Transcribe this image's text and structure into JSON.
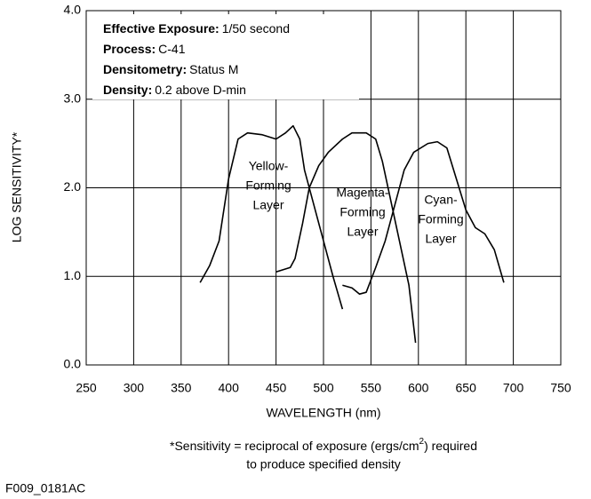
{
  "chart_data": {
    "type": "line",
    "xlabel": "WAVELENGTH (nm)",
    "ylabel": "LOG SENSITIVITY*",
    "xlim": [
      250,
      750
    ],
    "xticks": [
      250,
      300,
      350,
      400,
      450,
      500,
      550,
      600,
      650,
      700,
      750
    ],
    "ylim": [
      0,
      4
    ],
    "yticks": [
      {
        "value": 0,
        "label": "0.0"
      },
      {
        "value": 1,
        "label": "1.0"
      },
      {
        "value": 2,
        "label": "2.0"
      },
      {
        "value": 3,
        "label": "3.0"
      },
      {
        "value": 4,
        "label": "4.0"
      }
    ],
    "grid": true,
    "annotations": [
      {
        "label": "Effective Exposure:",
        "text": "1/50 second"
      },
      {
        "label": "Process:",
        "text": "C-41"
      },
      {
        "label": "Densitometry:",
        "text": "Status M"
      },
      {
        "label": "Density:",
        "text": "0.2 above D-min"
      }
    ],
    "series": [
      {
        "label_lines": [
          "Yellow-",
          "Forming",
          "Layer"
        ],
        "color": "#000000",
        "x": [
          370,
          380,
          390,
          400,
          410,
          420,
          435,
          450,
          460,
          468,
          475,
          480,
          490,
          500,
          510,
          520
        ],
        "values": [
          0.93,
          1.12,
          1.4,
          2.1,
          2.55,
          2.62,
          2.6,
          2.55,
          2.62,
          2.7,
          2.55,
          2.2,
          1.8,
          1.4,
          1.0,
          0.63
        ]
      },
      {
        "label_lines": [
          "Magenta-",
          "Forming",
          "Layer"
        ],
        "color": "#000000",
        "x": [
          450,
          465,
          470,
          478,
          485,
          495,
          505,
          520,
          530,
          545,
          555,
          562,
          570,
          580,
          590,
          597
        ],
        "values": [
          1.05,
          1.1,
          1.2,
          1.6,
          2.0,
          2.25,
          2.4,
          2.55,
          2.62,
          2.62,
          2.55,
          2.3,
          1.9,
          1.4,
          0.9,
          0.25
        ]
      },
      {
        "label_lines": [
          "Cyan-",
          "Forming",
          "Layer"
        ],
        "color": "#000000",
        "x": [
          520,
          530,
          538,
          545,
          555,
          565,
          575,
          585,
          595,
          610,
          620,
          630,
          640,
          650,
          660,
          670,
          680,
          690
        ],
        "values": [
          0.9,
          0.87,
          0.8,
          0.82,
          1.1,
          1.4,
          1.8,
          2.2,
          2.4,
          2.5,
          2.52,
          2.45,
          2.1,
          1.75,
          1.55,
          1.48,
          1.3,
          0.93
        ]
      }
    ],
    "footnote": {
      "before": "*Sensitivity = reciprocal of exposure (ergs/cm",
      "superscript": "2",
      "after": ") required",
      "line2": "to produce specified density"
    },
    "code": "F009_0181AC"
  }
}
